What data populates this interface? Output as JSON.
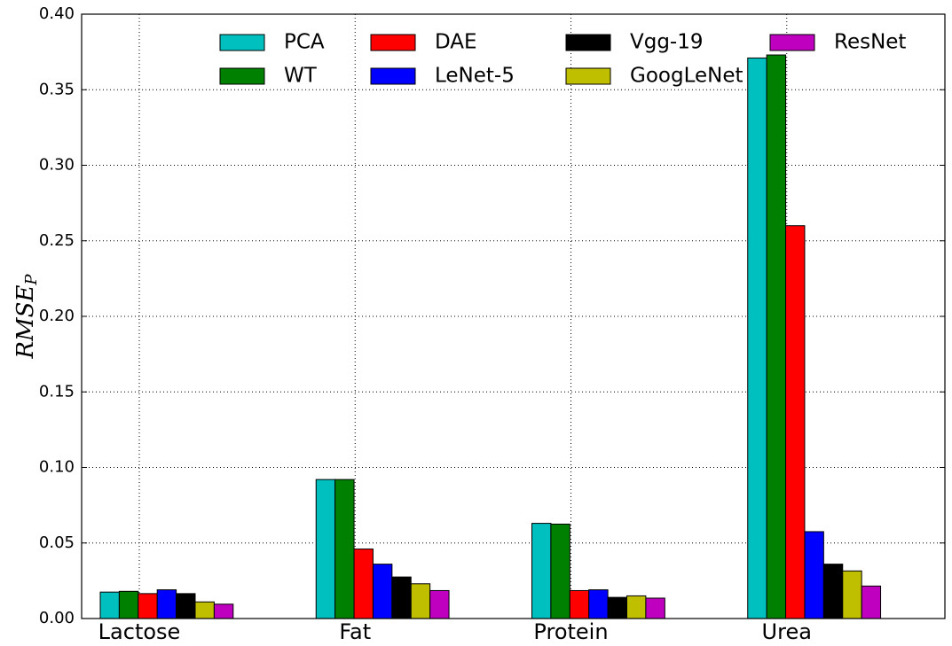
{
  "chart_data": {
    "type": "bar",
    "y_label": {
      "main": "RMSE",
      "sub": "P"
    },
    "categories": [
      "Lactose",
      "Fat",
      "Protein",
      "Urea"
    ],
    "series": [
      {
        "name": "PCA",
        "color": "#00bfbf",
        "values": [
          0.0175,
          0.092,
          0.063,
          0.371
        ]
      },
      {
        "name": "WT",
        "color": "#008000",
        "values": [
          0.018,
          0.092,
          0.0625,
          0.373
        ]
      },
      {
        "name": "DAE",
        "color": "#ff0000",
        "values": [
          0.0165,
          0.046,
          0.0185,
          0.26
        ]
      },
      {
        "name": "LeNet-5",
        "color": "#0000ff",
        "values": [
          0.019,
          0.036,
          0.019,
          0.0575
        ]
      },
      {
        "name": "Vgg-19",
        "color": "#000000",
        "values": [
          0.0165,
          0.0275,
          0.014,
          0.036
        ]
      },
      {
        "name": "GoogLeNet",
        "color": "#bfbf00",
        "values": [
          0.011,
          0.023,
          0.015,
          0.0315
        ]
      },
      {
        "name": "ResNet",
        "color": "#bf00bf",
        "values": [
          0.0095,
          0.0185,
          0.0135,
          0.0215
        ]
      }
    ],
    "ylim": [
      0,
      0.4
    ],
    "yticks": [
      {
        "value": 0,
        "label": "0.00"
      },
      {
        "value": 0.05,
        "label": "0.05"
      },
      {
        "value": 0.1,
        "label": "0.10"
      },
      {
        "value": 0.15,
        "label": "0.15"
      },
      {
        "value": 0.2,
        "label": "0.20"
      },
      {
        "value": 0.25,
        "label": "0.25"
      },
      {
        "value": 0.3,
        "label": "0.30"
      },
      {
        "value": 0.35,
        "label": "0.35"
      },
      {
        "value": 0.4,
        "label": "0.40"
      }
    ],
    "grid": true,
    "legend": "top"
  }
}
